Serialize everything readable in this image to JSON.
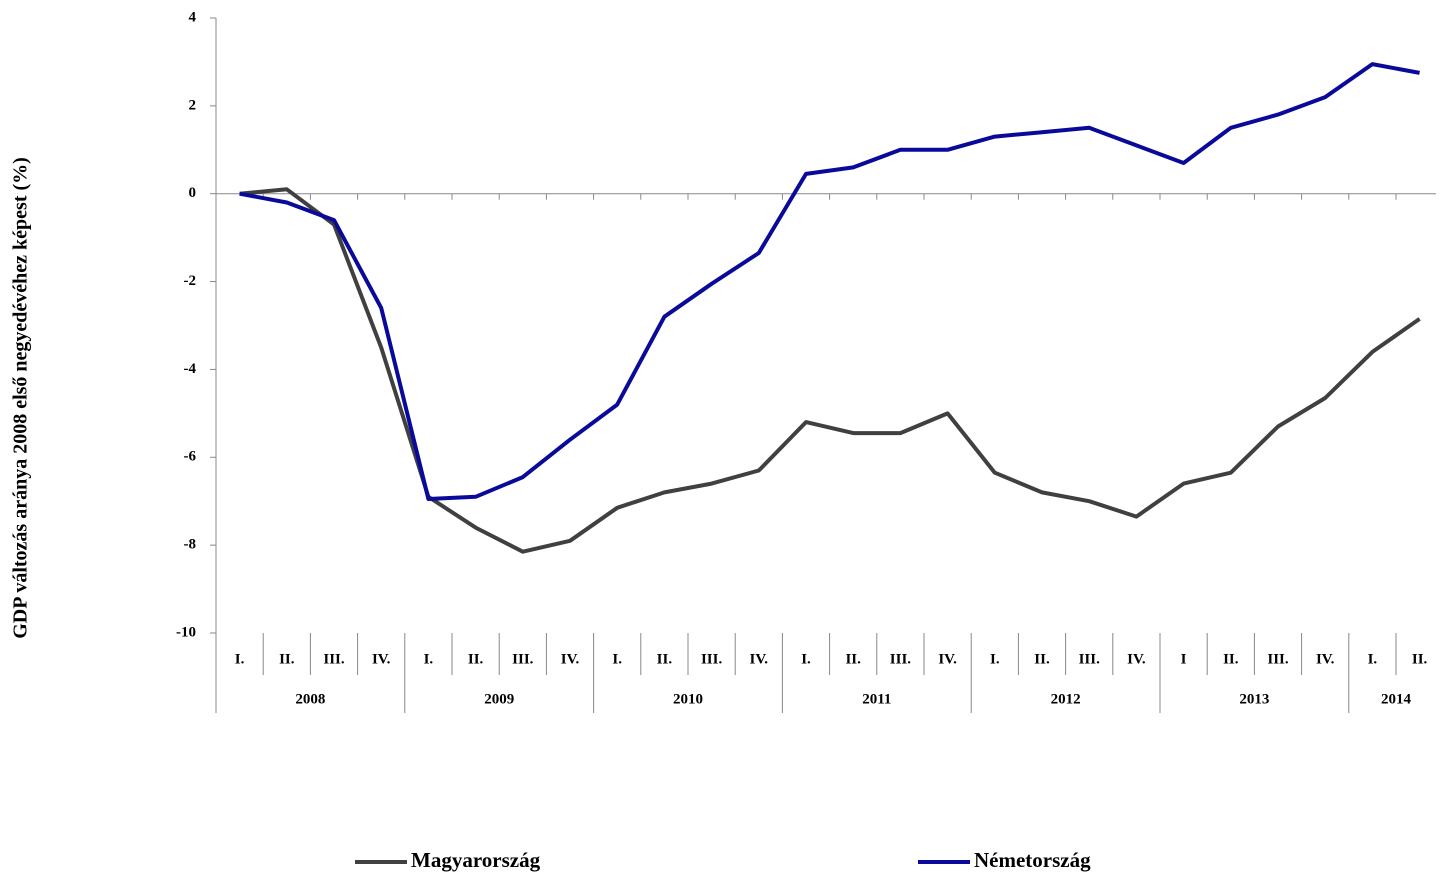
{
  "chart_data": {
    "type": "line",
    "y_axis_label": "GDP változás aránya 2008 első negyedévéhez képest (%)",
    "category_groups": [
      {
        "name": "2008",
        "categories": [
          "I.",
          "II.",
          "III.",
          "IV."
        ]
      },
      {
        "name": "2009",
        "categories": [
          "I.",
          "II.",
          "III.",
          "IV."
        ]
      },
      {
        "name": "2010",
        "categories": [
          "I.",
          "II.",
          "III.",
          "IV."
        ]
      },
      {
        "name": "2011",
        "categories": [
          "I.",
          "II.",
          "III.",
          "IV."
        ]
      },
      {
        "name": "2012",
        "categories": [
          "I.",
          "II.",
          "III.",
          "IV."
        ]
      },
      {
        "name": "2013",
        "categories": [
          "I",
          "II.",
          "III.",
          "IV."
        ]
      },
      {
        "name": "2014",
        "categories": [
          "I.",
          "II."
        ]
      }
    ],
    "series": [
      {
        "name": "Magyarország",
        "color": "#404040",
        "values": [
          0,
          0.1,
          -0.7,
          -3.5,
          -6.9,
          -7.6,
          -8.15,
          -7.9,
          -7.15,
          -6.8,
          -6.6,
          -6.3,
          -5.2,
          -5.45,
          -5.45,
          -5.0,
          -6.35,
          -6.8,
          -7.0,
          -7.35,
          -6.6,
          -6.35,
          -5.3,
          -4.65,
          -3.6,
          -2.85
        ]
      },
      {
        "name": "Németország",
        "color": "#0a0a9a",
        "values": [
          0,
          -0.2,
          -0.6,
          -2.6,
          -6.95,
          -6.9,
          -6.45,
          -5.6,
          -4.8,
          -2.8,
          -2.05,
          -1.35,
          0.45,
          0.6,
          1.0,
          1.0,
          1.3,
          1.4,
          1.5,
          1.1,
          0.7,
          1.5,
          1.8,
          2.2,
          2.95,
          2.75
        ]
      }
    ],
    "ylim": [
      -10,
      4
    ],
    "yticks": [
      4,
      2,
      0,
      -2,
      -4,
      -6,
      -8,
      -10
    ],
    "grid": false,
    "legend": "bottom"
  }
}
